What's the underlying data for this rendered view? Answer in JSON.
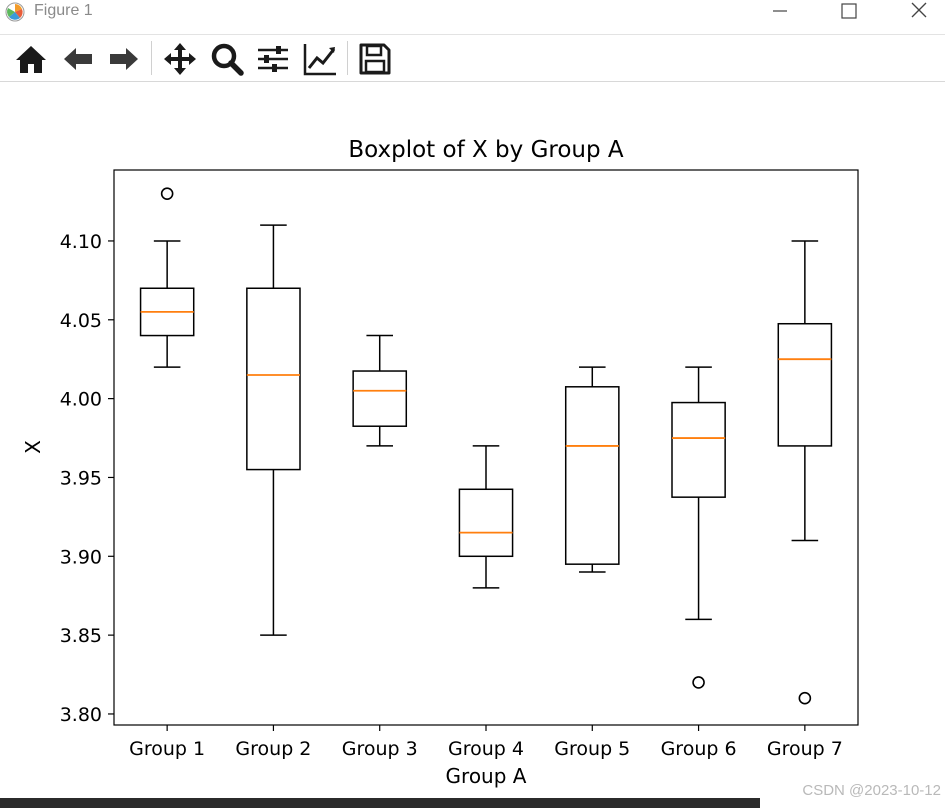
{
  "window": {
    "title": "Figure 1",
    "app_icon": "matplotlib-icon",
    "buttons": [
      "minimize-icon",
      "maximize-icon",
      "close-icon"
    ]
  },
  "toolbar": {
    "buttons": [
      "home-icon",
      "back-arrow-icon",
      "forward-arrow-icon",
      "pan-icon",
      "zoom-icon",
      "configure-subplots-icon",
      "edit-axis-icon",
      "save-icon"
    ]
  },
  "colors": {
    "median": "#ff7f0e",
    "box": "#000000",
    "icon": "#1a1a1a"
  },
  "chart_data": {
    "type": "boxplot",
    "title": "Boxplot of X by Group A",
    "xlabel": "Group A",
    "ylabel": "X",
    "ylim": [
      3.793,
      4.145
    ],
    "yticks": [
      3.8,
      3.85,
      3.9,
      3.95,
      4.0,
      4.05,
      4.1
    ],
    "ytick_labels": [
      "3.80",
      "3.85",
      "3.90",
      "3.95",
      "4.00",
      "4.05",
      "4.10"
    ],
    "categories": [
      "Group 1",
      "Group 2",
      "Group 3",
      "Group 4",
      "Group 5",
      "Group 6",
      "Group 7"
    ],
    "boxes": [
      {
        "whislo": 4.02,
        "q1": 4.04,
        "med": 4.055,
        "q3": 4.07,
        "whishi": 4.1,
        "fliers": [
          4.13
        ]
      },
      {
        "whislo": 3.85,
        "q1": 3.955,
        "med": 4.015,
        "q3": 4.07,
        "whishi": 4.11,
        "fliers": []
      },
      {
        "whislo": 3.97,
        "q1": 3.9825,
        "med": 4.005,
        "q3": 4.0175,
        "whishi": 4.04,
        "fliers": []
      },
      {
        "whislo": 3.88,
        "q1": 3.9,
        "med": 3.915,
        "q3": 3.9425,
        "whishi": 3.97,
        "fliers": []
      },
      {
        "whislo": 3.89,
        "q1": 3.895,
        "med": 3.97,
        "q3": 4.0075,
        "whishi": 4.02,
        "fliers": []
      },
      {
        "whislo": 3.86,
        "q1": 3.9375,
        "med": 3.975,
        "q3": 3.9975,
        "whishi": 4.02,
        "fliers": [
          3.82
        ]
      },
      {
        "whislo": 3.91,
        "q1": 3.97,
        "med": 4.025,
        "q3": 4.0475,
        "whishi": 4.1,
        "fliers": [
          3.81
        ]
      }
    ]
  },
  "watermark": "CSDN @2023-10-12"
}
